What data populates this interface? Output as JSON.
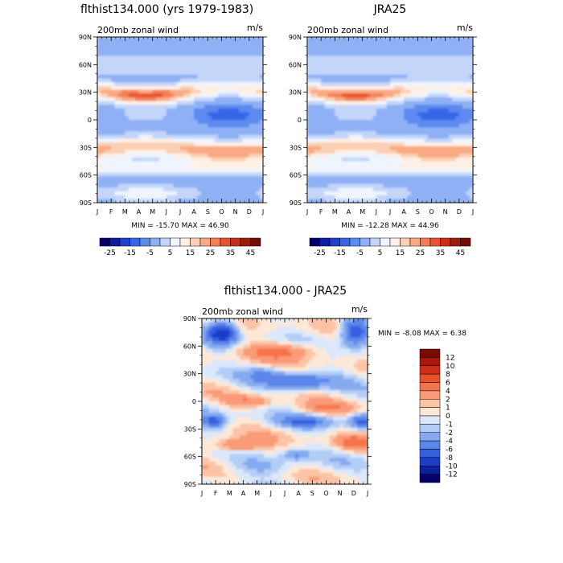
{
  "chart_data": [
    {
      "type": "heatmap",
      "title": "flthist134.000 (yrs 1979-1983)",
      "subtitle_left": "200mb zonal wind",
      "subtitle_right": "m/s",
      "x_ticks": [
        "J",
        "F",
        "M",
        "A",
        "M",
        "J",
        "J",
        "A",
        "S",
        "O",
        "N",
        "D",
        "J"
      ],
      "y_ticks": [
        "90N",
        "60N",
        "30N",
        "0",
        "30S",
        "60S",
        "90S"
      ],
      "stats": "MIN = -15.70 MAX =   46.90",
      "min": -15.7,
      "max": 46.9,
      "colorbar": {
        "orientation": "horizontal",
        "levels": [
          -25,
          -20,
          -15,
          -10,
          -5,
          0,
          5,
          10,
          15,
          20,
          25,
          30,
          35,
          40,
          45
        ],
        "tick_labels": [
          "-25",
          "-15",
          "-5",
          "5",
          "15",
          "25",
          "35",
          "45"
        ],
        "colors": [
          "#03006b",
          "#0d1e9e",
          "#1e3fcf",
          "#3865e8",
          "#5b8af0",
          "#8fb0f5",
          "#c3d6fa",
          "#eef5ff",
          "#fff0e6",
          "#fcd0b4",
          "#f9a983",
          "#f47f57",
          "#e8542f",
          "#c9301a",
          "#9e1c0e",
          "#6e0c05"
        ]
      }
    },
    {
      "type": "heatmap",
      "title": "JRA25",
      "subtitle_left": "200mb zonal wind",
      "subtitle_right": "m/s",
      "x_ticks": [
        "J",
        "F",
        "M",
        "A",
        "M",
        "J",
        "J",
        "A",
        "S",
        "O",
        "N",
        "D",
        "J"
      ],
      "y_ticks": [
        "90N",
        "60N",
        "30N",
        "0",
        "30S",
        "60S",
        "90S"
      ],
      "stats": "MIN = -12.28 MAX =   44.96",
      "min": -12.28,
      "max": 44.96,
      "colorbar": {
        "orientation": "horizontal",
        "levels": [
          -25,
          -20,
          -15,
          -10,
          -5,
          0,
          5,
          10,
          15,
          20,
          25,
          30,
          35,
          40,
          45
        ],
        "tick_labels": [
          "-25",
          "-15",
          "-5",
          "5",
          "15",
          "25",
          "35",
          "45"
        ],
        "colors": [
          "#03006b",
          "#0d1e9e",
          "#1e3fcf",
          "#3865e8",
          "#5b8af0",
          "#8fb0f5",
          "#c3d6fa",
          "#eef5ff",
          "#fff0e6",
          "#fcd0b4",
          "#f9a983",
          "#f47f57",
          "#e8542f",
          "#c9301a",
          "#9e1c0e",
          "#6e0c05"
        ]
      }
    },
    {
      "type": "heatmap",
      "title": "flthist134.000 - JRA25",
      "subtitle_left": "200mb zonal wind",
      "subtitle_right": "m/s",
      "x_ticks": [
        "J",
        "F",
        "M",
        "A",
        "M",
        "J",
        "J",
        "A",
        "S",
        "O",
        "N",
        "D",
        "J"
      ],
      "y_ticks": [
        "90N",
        "60N",
        "30N",
        "0",
        "30S",
        "60S",
        "90S"
      ],
      "stats": "MIN =  -8.08 MAX =   6.38",
      "min": -8.08,
      "max": 6.38,
      "colorbar": {
        "orientation": "vertical",
        "levels": [
          12,
          10,
          8,
          6,
          4,
          2,
          1,
          0,
          -1,
          -2,
          -4,
          -6,
          -8,
          -10,
          -12
        ],
        "tick_labels": [
          "12",
          "10",
          "8",
          "6",
          "4",
          "2",
          "1",
          "0",
          "-1",
          "-2",
          "-4",
          "-6",
          "-8",
          "-10",
          "-12"
        ],
        "colors": [
          "#7a0a05",
          "#a8180c",
          "#cf2f18",
          "#ea4f2c",
          "#f5734c",
          "#f99a78",
          "#fcc3a5",
          "#fde8d8",
          "#dbe8fb",
          "#b4cdf6",
          "#86aaf0",
          "#5b86ea",
          "#3560df",
          "#1d3cc9",
          "#0d1f9e",
          "#03006b"
        ]
      }
    }
  ]
}
